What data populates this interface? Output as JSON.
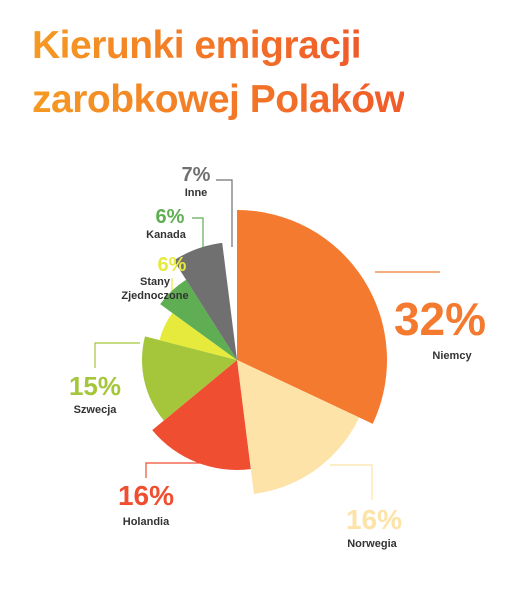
{
  "chart_data": {
    "type": "pie",
    "title": [
      "Kierunki emigracji",
      "zarobkowej Polaków"
    ],
    "categories": [
      "Niemcy",
      "Norwegia",
      "Holandia",
      "Szwecja",
      "Stany Zjednoczone",
      "Kanada",
      "Inne"
    ],
    "values": [
      32,
      16,
      16,
      15,
      6,
      6,
      7
    ],
    "value_labels": [
      "32%",
      "16%",
      "16%",
      "15%",
      "6%",
      "6%",
      "7%"
    ],
    "colors": [
      "#f47a30",
      "#fde3a7",
      "#f04e30",
      "#a5c63b",
      "#e6ea3c",
      "#5fae54",
      "#707070"
    ]
  }
}
